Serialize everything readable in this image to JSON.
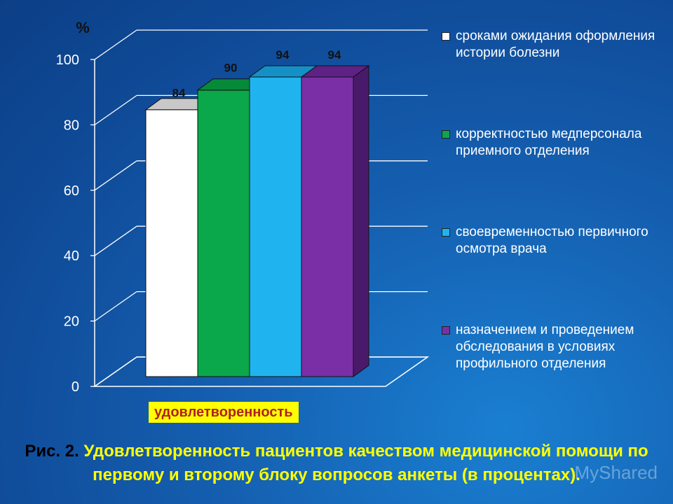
{
  "chart_data": {
    "type": "bar",
    "unit_label": "%",
    "y_ticks": [
      "0",
      "20",
      "40",
      "60",
      "80",
      "100"
    ],
    "ylim": [
      0,
      100
    ],
    "category": "удовлетворенность",
    "series": [
      {
        "name": "сроками ожидания оформления истории болезни",
        "value": 84,
        "label": "84",
        "color": "#ffffff",
        "top_color": "#c8c8c8",
        "side_color": "#d0d0d0"
      },
      {
        "name": "корректностью медперсонала приемного отделения",
        "value": 90,
        "label": "90",
        "color": "#0aa84a",
        "top_color": "#068a3a",
        "side_color": "#067a33"
      },
      {
        "name": "своевременностью первичного осмотра врача",
        "value": 94,
        "label": "94",
        "color": "#1fb4f0",
        "top_color": "#1590c6",
        "side_color": "#1482b4"
      },
      {
        "name": "назначением и проведением обследования в условиях профильного отделения",
        "value": 94,
        "label": "94",
        "color": "#7a2fa6",
        "top_color": "#5e2185",
        "side_color": "#4a1a6a"
      }
    ],
    "grid": true,
    "legend_position": "right"
  },
  "legend": [
    {
      "label": "сроками ожидания оформления истории болезни",
      "color": "#ffffff"
    },
    {
      "label": "корректностью медперсонала приемного отделения",
      "color": "#0aa84a"
    },
    {
      "label": "своевременностью первичного осмотра врача",
      "color": "#1fb4f0"
    },
    {
      "label": "назначением и проведением обследования в условиях профильного отделения",
      "color": "#7a2fa6"
    }
  ],
  "caption": {
    "prefix": "Рис. 2.",
    "text": " Удовлетворенность пациентов качеством медицинской помощи по первому и второму блоку вопросов анкеты (в процентах)."
  },
  "watermark": "MyShared"
}
